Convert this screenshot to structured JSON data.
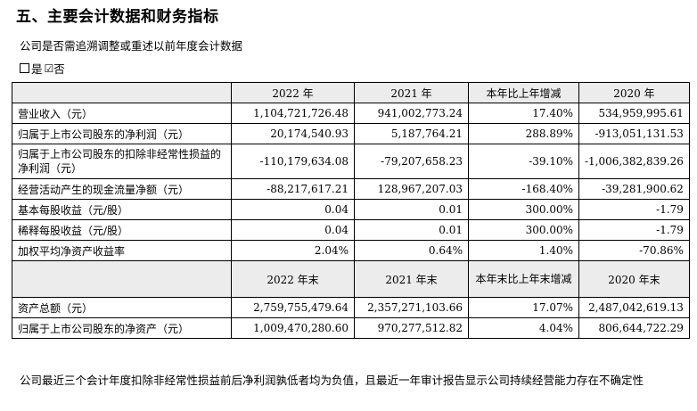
{
  "title": "五、主要会计数据和财务指标",
  "question": "公司是否需追溯调整或重述以前年度会计数据",
  "options": {
    "yes": {
      "mark": "",
      "label": "是"
    },
    "no": {
      "mark": "☑",
      "label": "否"
    }
  },
  "table1": {
    "headers": [
      "",
      "2022 年",
      "2021 年",
      "本年比上年增减",
      "2020 年"
    ],
    "rows": [
      [
        "营业收入（元）",
        "1,104,721,726.48",
        "941,002,773.24",
        "17.40%",
        "534,959,995.61"
      ],
      [
        "归属于上市公司股东的净利润（元）",
        "20,174,540.93",
        "5,187,764.21",
        "288.89%",
        "-913,051,131.53"
      ],
      [
        "归属于上市公司股东的扣除非经常性损益的净利润（元）",
        "-110,179,634.08",
        "-79,207,658.23",
        "-39.10%",
        "-1,006,382,839.26"
      ],
      [
        "经营活动产生的现金流量净额（元）",
        "-88,217,617.21",
        "128,967,207.03",
        "-168.40%",
        "-39,281,900.62"
      ],
      [
        "基本每股收益（元/股）",
        "0.04",
        "0.01",
        "300.00%",
        "-1.79"
      ],
      [
        "稀释每股收益（元/股）",
        "0.04",
        "0.01",
        "300.00%",
        "-1.79"
      ],
      [
        "加权平均净资产收益率",
        "2.04%",
        "0.64%",
        "1.40%",
        "-70.86%"
      ]
    ]
  },
  "table2": {
    "headers": [
      "",
      "2022 年末",
      "2021 年末",
      "本年末比上年末增减",
      "2020 年末"
    ],
    "rows": [
      [
        "资产总额（元）",
        "2,759,755,479.64",
        "2,357,271,103.66",
        "17.07%",
        "2,487,042,619.13"
      ],
      [
        "归属于上市公司股东的净资产（元）",
        "1,009,470,280.60",
        "970,277,512.82",
        "4.04%",
        "806,644,722.29"
      ]
    ]
  },
  "footnote": "公司最近三个会计年度扣除非经常性损益前后净利润孰低者均为负值，且最近一年审计报告显示公司持续经营能力存在不确定性"
}
